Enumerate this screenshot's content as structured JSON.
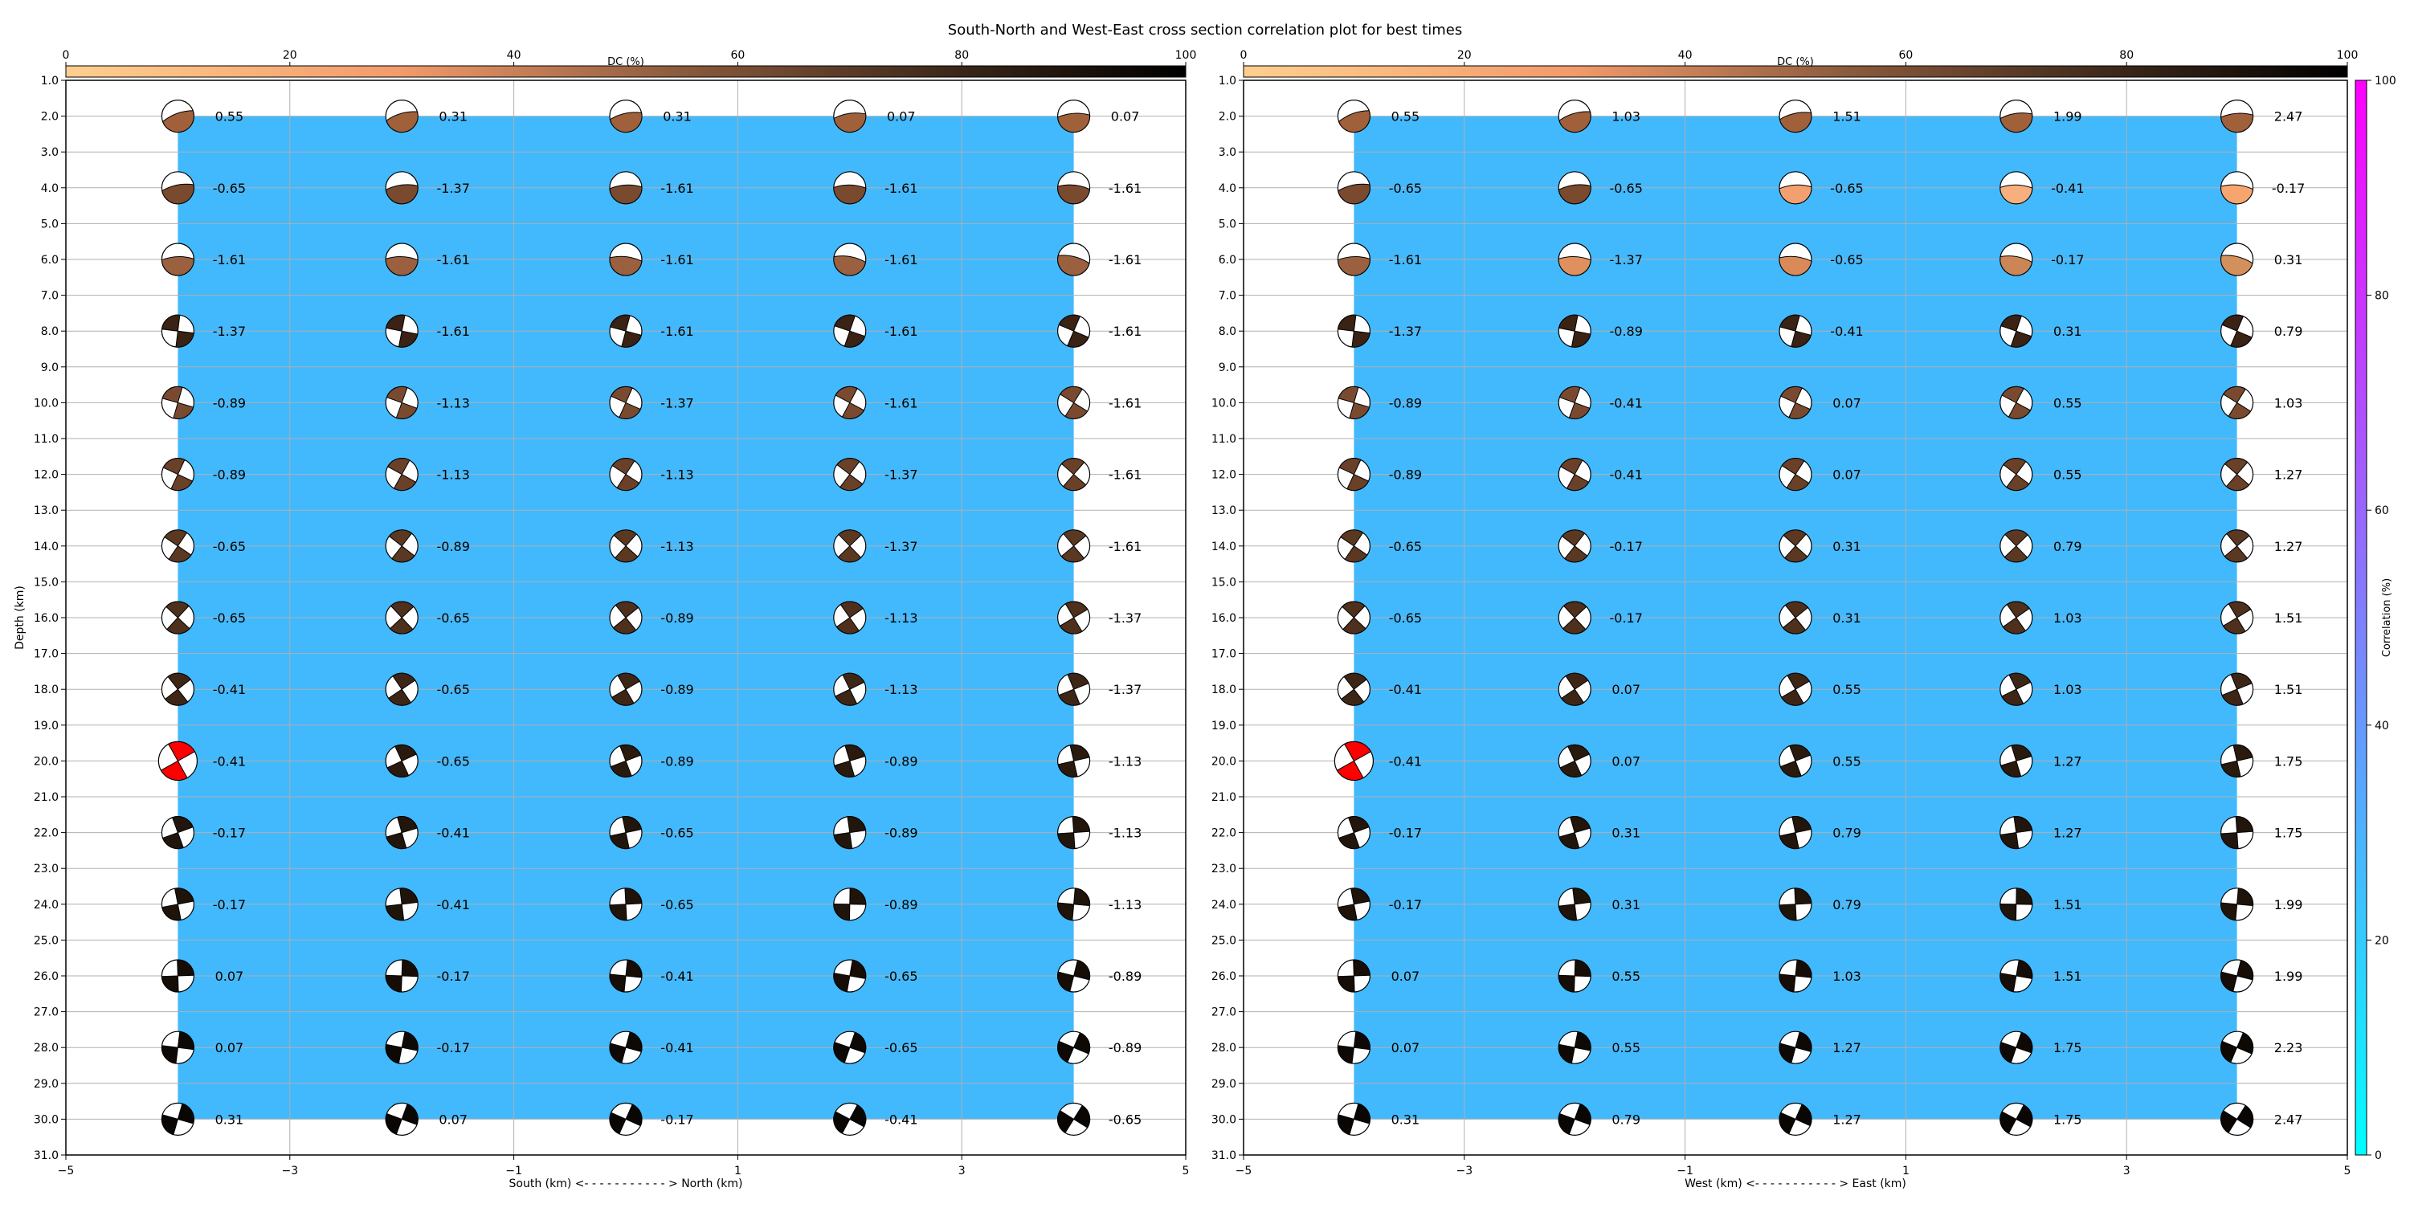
{
  "title": "South-North and West-East cross section correlation plot for best times",
  "colors": {
    "background_field": "#42b9fc",
    "grid": "#b0b0b0",
    "best_solution": "#ff0000",
    "dc_colormap": [
      "#ffcf8f",
      "#f39a6a",
      "#8a5a3c",
      "#3a2618",
      "#000000"
    ],
    "correlation_colormap": [
      "#00ffff",
      "#ff00ff"
    ]
  },
  "dc_colorbar": {
    "label": "DC (%)",
    "ticks": [
      "0",
      "20",
      "40",
      "60",
      "80",
      "100"
    ]
  },
  "correlation_colorbar": {
    "label": "Correlation (%)",
    "ticks": [
      "0",
      "20",
      "40",
      "60",
      "80",
      "100"
    ]
  },
  "chart_data": [
    {
      "type": "scatter",
      "name": "south-north-section",
      "xlabel": "South (km) <- - - - - - - - - - - > North (km)",
      "ylabel": "Depth (km)",
      "xlim": [
        -5,
        5
      ],
      "ylim": [
        31,
        1
      ],
      "x_ticks": [
        "−5",
        "−3",
        "−1",
        "1",
        "3",
        "5"
      ],
      "y_ticks": [
        "1.0",
        "2.0",
        "3.0",
        "4.0",
        "5.0",
        "6.0",
        "7.0",
        "8.0",
        "9.0",
        "10.0",
        "11.0",
        "12.0",
        "13.0",
        "14.0",
        "15.0",
        "16.0",
        "17.0",
        "18.0",
        "19.0",
        "20.0",
        "21.0",
        "22.0",
        "23.0",
        "24.0",
        "25.0",
        "26.0",
        "27.0",
        "28.0",
        "29.0",
        "30.0",
        "31.0"
      ],
      "x": [
        -4,
        -2,
        0,
        2,
        4
      ],
      "depths": [
        2,
        4,
        6,
        8,
        10,
        12,
        14,
        16,
        18,
        20,
        22,
        24,
        26,
        28,
        30
      ],
      "time_shifts": [
        [
          "0.55",
          "0.31",
          "0.31",
          "0.07",
          "0.07"
        ],
        [
          "-0.65",
          "-1.37",
          "-1.61",
          "-1.61",
          "-1.61"
        ],
        [
          "-1.61",
          "-1.61",
          "-1.61",
          "-1.61",
          "-1.61"
        ],
        [
          "-1.37",
          "-1.61",
          "-1.61",
          "-1.61",
          "-1.61"
        ],
        [
          "-0.89",
          "-1.13",
          "-1.37",
          "-1.61",
          "-1.61"
        ],
        [
          "-0.89",
          "-1.13",
          "-1.13",
          "-1.37",
          "-1.61"
        ],
        [
          "-0.65",
          "-0.89",
          "-1.13",
          "-1.37",
          "-1.61"
        ],
        [
          "-0.65",
          "-0.65",
          "-0.89",
          "-1.13",
          "-1.37"
        ],
        [
          "-0.41",
          "-0.65",
          "-0.89",
          "-1.13",
          "-1.37"
        ],
        [
          "-0.41",
          "-0.65",
          "-0.89",
          "-0.89",
          "-1.13"
        ],
        [
          "-0.17",
          "-0.41",
          "-0.65",
          "-0.89",
          "-1.13"
        ],
        [
          "-0.17",
          "-0.41",
          "-0.65",
          "-0.89",
          "-1.13"
        ],
        [
          "0.07",
          "-0.17",
          "-0.41",
          "-0.65",
          "-0.89"
        ],
        [
          "0.07",
          "-0.17",
          "-0.41",
          "-0.65",
          "-0.89"
        ],
        [
          "0.31",
          "0.07",
          "-0.17",
          "-0.41",
          "-0.65"
        ]
      ],
      "correlation_field": {
        "x_range": [
          -4,
          4
        ],
        "depth_range": [
          2,
          30
        ],
        "correlation": 20
      },
      "best_solution": {
        "x": -4,
        "depth": 20
      }
    },
    {
      "type": "scatter",
      "name": "west-east-section",
      "xlabel": "West (km) <- - - - - - - - - - - > East (km)",
      "ylabel": "",
      "xlim": [
        -5,
        5
      ],
      "ylim": [
        31,
        1
      ],
      "x_ticks": [
        "−5",
        "−3",
        "−1",
        "1",
        "3",
        "5"
      ],
      "y_ticks": [
        "1.0",
        "2.0",
        "3.0",
        "4.0",
        "5.0",
        "6.0",
        "7.0",
        "8.0",
        "9.0",
        "10.0",
        "11.0",
        "12.0",
        "13.0",
        "14.0",
        "15.0",
        "16.0",
        "17.0",
        "18.0",
        "19.0",
        "20.0",
        "21.0",
        "22.0",
        "23.0",
        "24.0",
        "25.0",
        "26.0",
        "27.0",
        "28.0",
        "29.0",
        "30.0",
        "31.0"
      ],
      "x": [
        -4,
        -2,
        0,
        2,
        4
      ],
      "depths": [
        2,
        4,
        6,
        8,
        10,
        12,
        14,
        16,
        18,
        20,
        22,
        24,
        26,
        28,
        30
      ],
      "time_shifts": [
        [
          "0.55",
          "1.03",
          "1.51",
          "1.99",
          "2.47"
        ],
        [
          "-0.65",
          "-0.65",
          "-0.65",
          "-0.41",
          "-0.17"
        ],
        [
          "-1.61",
          "-1.37",
          "-0.65",
          "-0.17",
          "0.31"
        ],
        [
          "-1.37",
          "-0.89",
          "-0.41",
          "0.31",
          "0.79"
        ],
        [
          "-0.89",
          "-0.41",
          "0.07",
          "0.55",
          "1.03"
        ],
        [
          "-0.89",
          "-0.41",
          "0.07",
          "0.55",
          "1.27"
        ],
        [
          "-0.65",
          "-0.17",
          "0.31",
          "0.79",
          "1.27"
        ],
        [
          "-0.65",
          "-0.17",
          "0.31",
          "1.03",
          "1.51"
        ],
        [
          "-0.41",
          "0.07",
          "0.55",
          "1.03",
          "1.51"
        ],
        [
          "-0.41",
          "0.07",
          "0.55",
          "1.27",
          "1.75"
        ],
        [
          "-0.17",
          "0.31",
          "0.79",
          "1.27",
          "1.75"
        ],
        [
          "-0.17",
          "0.31",
          "0.79",
          "1.51",
          "1.99"
        ],
        [
          "0.07",
          "0.55",
          "1.03",
          "1.51",
          "1.99"
        ],
        [
          "0.07",
          "0.55",
          "1.27",
          "1.75",
          "2.23"
        ],
        [
          "0.31",
          "0.79",
          "1.27",
          "1.75",
          "2.47"
        ]
      ],
      "correlation_field": {
        "x_range": [
          -4,
          4
        ],
        "depth_range": [
          2,
          30
        ],
        "correlation": 20
      },
      "best_solution": {
        "x": -4,
        "depth": 20
      }
    }
  ]
}
